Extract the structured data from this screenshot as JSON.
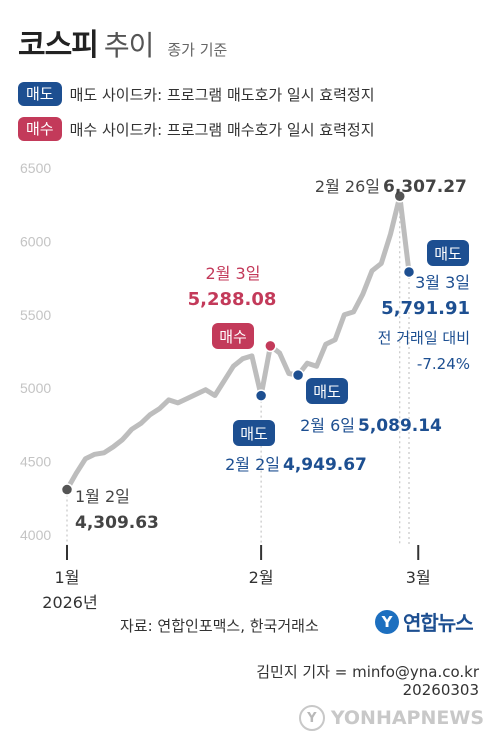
{
  "header": {
    "title_main": "코스피",
    "title_sub": "추이",
    "title_note": "종가 기준"
  },
  "legend": {
    "sell_badge": "매도",
    "sell_text": "매도 사이드카: 프로그램 매도호가 일시 효력정지",
    "buy_badge": "매수",
    "buy_text": "매수 사이드카: 프로그램 매수호가 일시 효력정지"
  },
  "colors": {
    "line": "#bdbdbd",
    "sell": "#1d4f91",
    "buy": "#c33a5a",
    "neutral": "#555555",
    "axis": "#333333"
  },
  "chart_data": {
    "type": "line",
    "ylim": [
      4000,
      6500
    ],
    "yticks": [
      4000,
      4500,
      5000,
      5500,
      6000,
      6500
    ],
    "xticks": [
      {
        "label": "1월",
        "index": 0
      },
      {
        "label": "2월",
        "index": 21
      },
      {
        "label": "3월",
        "index": 38
      }
    ],
    "x_year_label": "2026년",
    "series": [
      {
        "values": [
          4309.63,
          4420,
          4520,
          4550,
          4560,
          4600,
          4650,
          4720,
          4760,
          4820,
          4860,
          4920,
          4900,
          4930,
          4960,
          4990,
          4950,
          5050,
          5150,
          5200,
          5220,
          4949.67,
          5288.08,
          5240,
          5100,
          5089.14,
          5170,
          5150,
          5300,
          5330,
          5500,
          5520,
          5640,
          5800,
          5850,
          6050,
          6307.27,
          5791.91
        ]
      }
    ],
    "annotations": [
      {
        "index": 0,
        "date": "1월 2일",
        "value": "4,309.63",
        "kind": "neutral"
      },
      {
        "index": 21,
        "date": "2월 2일",
        "value": "4,949.67",
        "kind": "sell",
        "badge": "매도"
      },
      {
        "index": 22,
        "date": "2월 3일",
        "value": "5,288.08",
        "kind": "buy",
        "badge": "매수"
      },
      {
        "index": 25,
        "date": "2월 6일",
        "value": "5,089.14",
        "kind": "sell",
        "badge": "매도"
      },
      {
        "index": 36,
        "date": "2월 26일",
        "value": "6,307.27",
        "kind": "neutral"
      },
      {
        "index": 37,
        "date": "3월 3일",
        "value": "5,791.91",
        "kind": "sell",
        "badge": "매도",
        "change_label": "전 거래일 대비",
        "change": "-7.24%"
      }
    ]
  },
  "footer": {
    "source": "자료: 연합인포맥스, 한국거래소",
    "logo_mark": "Y",
    "logo_text": "연합뉴스",
    "byline": "김민지 기자 = minfo@yna.co.kr",
    "date_code": "20260303",
    "watermark_mark": "Y",
    "watermark_text": "YONHAPNEWS"
  }
}
